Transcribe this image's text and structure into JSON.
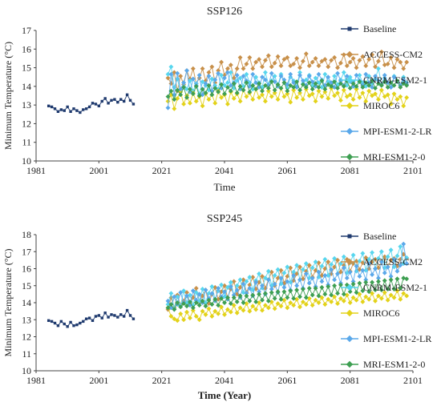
{
  "figure": {
    "colors": {
      "Baseline": "#1f3a6e",
      "ACCESS-CM2": "#c8904a",
      "CNRM-ESM2-1": "#58d6ee",
      "MIROC6": "#e3d21a",
      "MPI-ESM1-2-LR": "#5aa8ea",
      "MRI-ESM1-2-0": "#3e9f52"
    }
  },
  "chart_data": [
    {
      "type": "line",
      "title": "SSP126",
      "xlabel": "Time",
      "ylabel": "Minimum Temperature (°C)",
      "xlim": [
        1981,
        2101
      ],
      "ylim": [
        10,
        17
      ],
      "xticks": [
        "1981",
        "2001",
        "2021",
        "2041",
        "2061",
        "2081",
        "2101"
      ],
      "yticks": [
        "10",
        "11",
        "12",
        "13",
        "14",
        "15",
        "16",
        "17"
      ],
      "legend_position": "right",
      "series": [
        {
          "name": "Baseline",
          "x_start": 1985,
          "values": [
            12.95,
            12.9,
            12.8,
            12.65,
            12.75,
            12.7,
            12.9,
            12.65,
            12.8,
            12.7,
            12.6,
            12.75,
            12.8,
            12.9,
            13.1,
            13.05,
            12.95,
            13.2,
            13.35,
            13.1,
            13.25,
            13.3,
            13.15,
            13.3,
            13.2,
            13.55,
            13.25,
            13.05
          ]
        },
        {
          "name": "ACCESS-CM2",
          "x_start": 2023,
          "values": [
            14.45,
            14.15,
            14.75,
            13.75,
            14.55,
            14.1,
            14.85,
            14.4,
            14.95,
            14.15,
            14.45,
            14.95,
            14.3,
            14.75,
            15.05,
            14.2,
            14.85,
            15.3,
            14.6,
            14.95,
            15.15,
            14.45,
            14.95,
            15.55,
            14.95,
            15.2,
            15.55,
            14.95,
            15.3,
            15.45,
            15.05,
            15.4,
            15.65,
            15.05,
            15.25,
            15.6,
            15.1,
            15.45,
            15.55,
            15.1,
            15.2,
            15.5,
            15.0,
            15.35,
            15.75,
            15.1,
            15.3,
            15.5,
            15.1,
            15.35,
            15.45,
            15.05,
            15.4,
            15.55,
            15.0,
            15.25,
            15.7,
            15.1,
            15.3,
            15.5,
            15.0,
            15.4,
            15.6,
            15.1,
            15.45,
            15.7,
            15.05,
            15.35,
            15.85,
            15.15,
            15.2,
            15.55,
            15.0,
            15.45,
            15.3,
            14.95,
            15.3
          ]
        },
        {
          "name": "CNRM-ESM2-1",
          "x_start": 2023,
          "values": [
            14.65,
            15.05,
            13.95,
            14.4,
            13.7,
            14.2,
            13.85,
            14.3,
            13.75,
            14.15,
            13.6,
            14.25,
            14.05,
            13.8,
            14.4,
            14.05,
            13.85,
            14.6,
            14.05,
            14.2,
            14.75,
            13.9,
            14.3,
            14.45,
            14.0,
            14.65,
            14.2,
            13.85,
            14.5,
            14.2,
            13.95,
            14.75,
            14.1,
            14.3,
            14.55,
            14.05,
            14.65,
            14.2,
            13.9,
            14.5,
            14.3,
            14.0,
            14.75,
            14.15,
            14.35,
            14.6,
            14.05,
            14.45,
            14.2,
            13.95,
            14.65,
            14.25,
            14.0,
            14.55,
            14.1,
            14.35,
            14.75,
            14.05,
            14.5,
            14.25,
            13.9,
            14.6,
            14.2,
            14.0,
            14.55,
            14.15,
            14.4,
            14.95,
            14.1,
            14.45,
            14.2,
            13.95,
            14.55,
            14.25,
            14.05,
            14.5,
            14.2
          ]
        },
        {
          "name": "MIROC6",
          "x_start": 2023,
          "values": [
            13.2,
            13.55,
            12.8,
            13.35,
            13.7,
            13.05,
            13.5,
            13.1,
            13.65,
            13.2,
            13.45,
            12.95,
            13.6,
            13.3,
            13.55,
            13.1,
            13.75,
            13.4,
            13.55,
            13.05,
            13.7,
            13.35,
            13.6,
            13.2,
            13.8,
            13.45,
            13.65,
            13.3,
            13.85,
            13.4,
            13.55,
            13.2,
            13.75,
            13.45,
            13.65,
            13.3,
            13.9,
            13.45,
            13.6,
            13.15,
            13.8,
            13.4,
            13.65,
            13.3,
            13.85,
            13.5,
            13.6,
            13.2,
            13.75,
            13.45,
            13.7,
            13.35,
            13.9,
            13.5,
            13.65,
            13.25,
            13.8,
            13.45,
            13.55,
            13.3,
            13.85,
            13.4,
            13.65,
            13.2,
            13.75,
            13.5,
            13.6,
            13.3,
            13.8,
            13.45,
            13.55,
            13.05,
            13.6,
            13.3,
            13.45,
            12.95,
            13.4
          ]
        },
        {
          "name": "MPI-ESM1-2-LR",
          "x_start": 2023,
          "values": [
            12.85,
            14.65,
            13.55,
            14.7,
            13.85,
            14.2,
            14.85,
            13.7,
            14.4,
            14.05,
            14.6,
            13.55,
            14.15,
            14.55,
            13.75,
            14.35,
            14.7,
            13.9,
            14.45,
            14.75,
            14.05,
            14.2,
            14.6,
            13.85,
            14.55,
            14.3,
            14.0,
            14.65,
            14.2,
            13.95,
            14.5,
            14.35,
            14.05,
            14.7,
            14.25,
            14.0,
            14.55,
            14.35,
            14.1,
            14.65,
            14.2,
            13.95,
            14.6,
            14.3,
            14.05,
            14.55,
            14.25,
            14.0,
            14.65,
            14.35,
            14.05,
            14.5,
            14.2,
            13.95,
            14.7,
            14.3,
            14.05,
            14.55,
            14.25,
            14.0,
            14.6,
            14.3,
            14.05,
            14.65,
            14.2,
            13.95,
            14.55,
            14.3,
            14.05,
            14.6,
            14.2,
            13.95,
            14.5,
            14.25,
            14.05,
            14.35,
            14.1
          ]
        },
        {
          "name": "MRI-ESM1-2-0",
          "x_start": 2023,
          "values": [
            13.45,
            13.75,
            13.3,
            13.8,
            13.55,
            13.95,
            13.4,
            13.85,
            13.6,
            14.0,
            13.5,
            13.85,
            13.65,
            14.05,
            13.55,
            13.9,
            13.7,
            14.1,
            13.6,
            13.95,
            13.75,
            14.15,
            13.65,
            14.0,
            13.8,
            14.2,
            13.7,
            14.05,
            13.85,
            14.15,
            13.75,
            14.05,
            13.9,
            14.25,
            13.8,
            14.1,
            13.9,
            14.2,
            13.75,
            14.05,
            13.95,
            14.25,
            13.8,
            14.1,
            13.95,
            14.2,
            13.85,
            14.15,
            13.95,
            14.3,
            13.85,
            14.1,
            14.0,
            14.25,
            13.9,
            14.15,
            14.0,
            14.3,
            13.9,
            14.15,
            14.0,
            14.25,
            13.95,
            14.2,
            14.05,
            14.3,
            13.9,
            14.15,
            14.05,
            14.25,
            13.95,
            14.2,
            14.05,
            14.3,
            13.95,
            14.15,
            14.05
          ]
        }
      ]
    },
    {
      "type": "line",
      "title": "SSP245",
      "xlabel": "Time (Year)",
      "ylabel": "Minimum Temperature (°C)",
      "xlim": [
        1981,
        2101
      ],
      "ylim": [
        10,
        18
      ],
      "xticks": [
        "1981",
        "2001",
        "2021",
        "2041",
        "2061",
        "2081",
        "2101"
      ],
      "yticks": [
        "10",
        "11",
        "12",
        "13",
        "14",
        "15",
        "16",
        "17",
        "18"
      ],
      "legend_position": "right",
      "series": [
        {
          "name": "Baseline",
          "x_start": 1985,
          "values": [
            12.95,
            12.9,
            12.8,
            12.65,
            12.9,
            12.75,
            12.6,
            12.85,
            12.65,
            12.7,
            12.8,
            12.9,
            13.05,
            13.1,
            12.95,
            13.2,
            13.25,
            13.1,
            13.4,
            13.15,
            13.3,
            13.25,
            13.15,
            13.3,
            13.2,
            13.55,
            13.25,
            13.05
          ]
        },
        {
          "name": "ACCESS-CM2",
          "x_start": 2023,
          "values": [
            13.6,
            14.3,
            13.7,
            14.45,
            13.85,
            14.1,
            14.6,
            13.95,
            14.3,
            14.85,
            14.05,
            14.4,
            14.75,
            13.95,
            14.5,
            14.9,
            14.2,
            14.65,
            15.0,
            14.3,
            14.8,
            15.25,
            14.5,
            14.9,
            15.35,
            14.6,
            15.05,
            15.5,
            14.8,
            15.2,
            15.55,
            14.85,
            15.35,
            15.8,
            15.0,
            15.45,
            15.9,
            15.15,
            15.55,
            16.05,
            15.3,
            15.7,
            16.1,
            15.4,
            15.85,
            16.2,
            15.5,
            15.9,
            16.35,
            15.6,
            16.0,
            16.4,
            15.7,
            16.1,
            16.5,
            15.8,
            16.2,
            16.55,
            15.85,
            16.3,
            16.45,
            15.95,
            16.35,
            16.65,
            16.0,
            16.4,
            16.55,
            16.05,
            16.45,
            16.7,
            16.1,
            16.5,
            16.6,
            16.15,
            16.55,
            16.85,
            16.6
          ]
        },
        {
          "name": "CNRM-ESM2-1",
          "x_start": 2023,
          "values": [
            13.9,
            14.55,
            13.65,
            14.35,
            13.8,
            14.7,
            14.0,
            14.45,
            13.85,
            14.6,
            14.1,
            14.8,
            14.0,
            14.55,
            14.95,
            14.2,
            14.7,
            15.05,
            14.35,
            14.9,
            15.2,
            14.45,
            15.0,
            15.35,
            14.6,
            15.25,
            15.5,
            14.75,
            15.3,
            15.7,
            14.85,
            15.45,
            15.85,
            15.0,
            15.6,
            15.95,
            15.1,
            15.75,
            16.1,
            15.2,
            15.8,
            16.2,
            15.35,
            15.95,
            16.3,
            15.45,
            16.05,
            16.4,
            15.5,
            16.15,
            16.55,
            15.6,
            16.25,
            16.6,
            15.7,
            16.3,
            16.7,
            15.75,
            16.35,
            16.8,
            15.85,
            16.45,
            16.9,
            15.9,
            16.55,
            16.95,
            16.0,
            16.6,
            17.0,
            16.05,
            16.7,
            17.1,
            16.1,
            16.75,
            17.3,
            16.3,
            16.65
          ]
        },
        {
          "name": "MIROC6",
          "x_start": 2023,
          "values": [
            13.7,
            13.2,
            13.05,
            12.95,
            13.35,
            13.0,
            13.45,
            13.1,
            13.55,
            13.2,
            13.0,
            13.5,
            13.3,
            13.65,
            13.2,
            13.5,
            13.35,
            13.75,
            13.3,
            13.6,
            13.45,
            13.85,
            13.4,
            13.7,
            13.55,
            13.95,
            13.5,
            13.8,
            13.6,
            14.0,
            13.55,
            13.85,
            13.7,
            14.05,
            13.65,
            13.95,
            13.8,
            14.15,
            13.7,
            14.0,
            13.85,
            14.2,
            13.75,
            14.05,
            13.9,
            14.25,
            13.85,
            14.15,
            14.0,
            14.3,
            13.9,
            14.2,
            14.05,
            14.35,
            13.95,
            14.25,
            14.1,
            14.45,
            14.0,
            14.3,
            14.15,
            14.5,
            14.05,
            14.35,
            14.2,
            14.55,
            14.1,
            14.4,
            14.25,
            14.6,
            14.15,
            14.45,
            14.3,
            14.7,
            14.2,
            14.55,
            14.4
          ]
        },
        {
          "name": "MPI-ESM1-2-LR",
          "x_start": 2023,
          "values": [
            14.1,
            13.7,
            14.35,
            13.9,
            14.6,
            14.0,
            14.4,
            13.85,
            14.7,
            14.15,
            14.5,
            14.0,
            14.75,
            14.25,
            14.55,
            14.1,
            14.85,
            14.35,
            14.65,
            14.2,
            14.95,
            14.45,
            14.75,
            14.3,
            15.1,
            14.55,
            14.85,
            14.4,
            15.2,
            14.65,
            15.0,
            14.5,
            15.35,
            14.8,
            15.1,
            14.6,
            15.45,
            14.9,
            15.25,
            14.75,
            15.6,
            15.0,
            15.35,
            14.85,
            15.7,
            15.15,
            15.45,
            14.95,
            15.8,
            15.25,
            15.6,
            15.05,
            15.95,
            15.35,
            15.7,
            15.15,
            16.05,
            15.45,
            15.8,
            15.25,
            16.15,
            15.55,
            15.9,
            15.35,
            16.3,
            15.65,
            16.0,
            15.45,
            16.4,
            15.75,
            16.1,
            15.55,
            16.55,
            15.85,
            16.2,
            17.45,
            16.3
          ]
        },
        {
          "name": "MRI-ESM1-2-0",
          "x_start": 2023,
          "values": [
            13.7,
            13.9,
            13.6,
            14.0,
            13.75,
            13.95,
            13.8,
            14.05,
            13.7,
            14.0,
            13.85,
            14.1,
            13.8,
            14.15,
            13.9,
            14.2,
            13.85,
            14.25,
            14.0,
            14.3,
            13.95,
            14.3,
            14.05,
            14.4,
            14.0,
            14.4,
            14.1,
            14.45,
            14.05,
            14.5,
            14.15,
            14.55,
            14.1,
            14.6,
            14.25,
            14.65,
            14.2,
            14.65,
            14.3,
            14.7,
            14.25,
            14.75,
            14.35,
            14.8,
            14.3,
            14.85,
            14.45,
            14.85,
            14.4,
            14.9,
            14.5,
            14.95,
            14.45,
            15.0,
            14.55,
            15.05,
            14.5,
            15.05,
            14.65,
            15.1,
            14.6,
            15.15,
            14.7,
            15.2,
            14.65,
            15.2,
            14.75,
            15.25,
            14.75,
            15.3,
            14.8,
            15.35,
            14.8,
            15.4,
            14.85,
            15.45,
            15.4
          ]
        }
      ]
    }
  ]
}
